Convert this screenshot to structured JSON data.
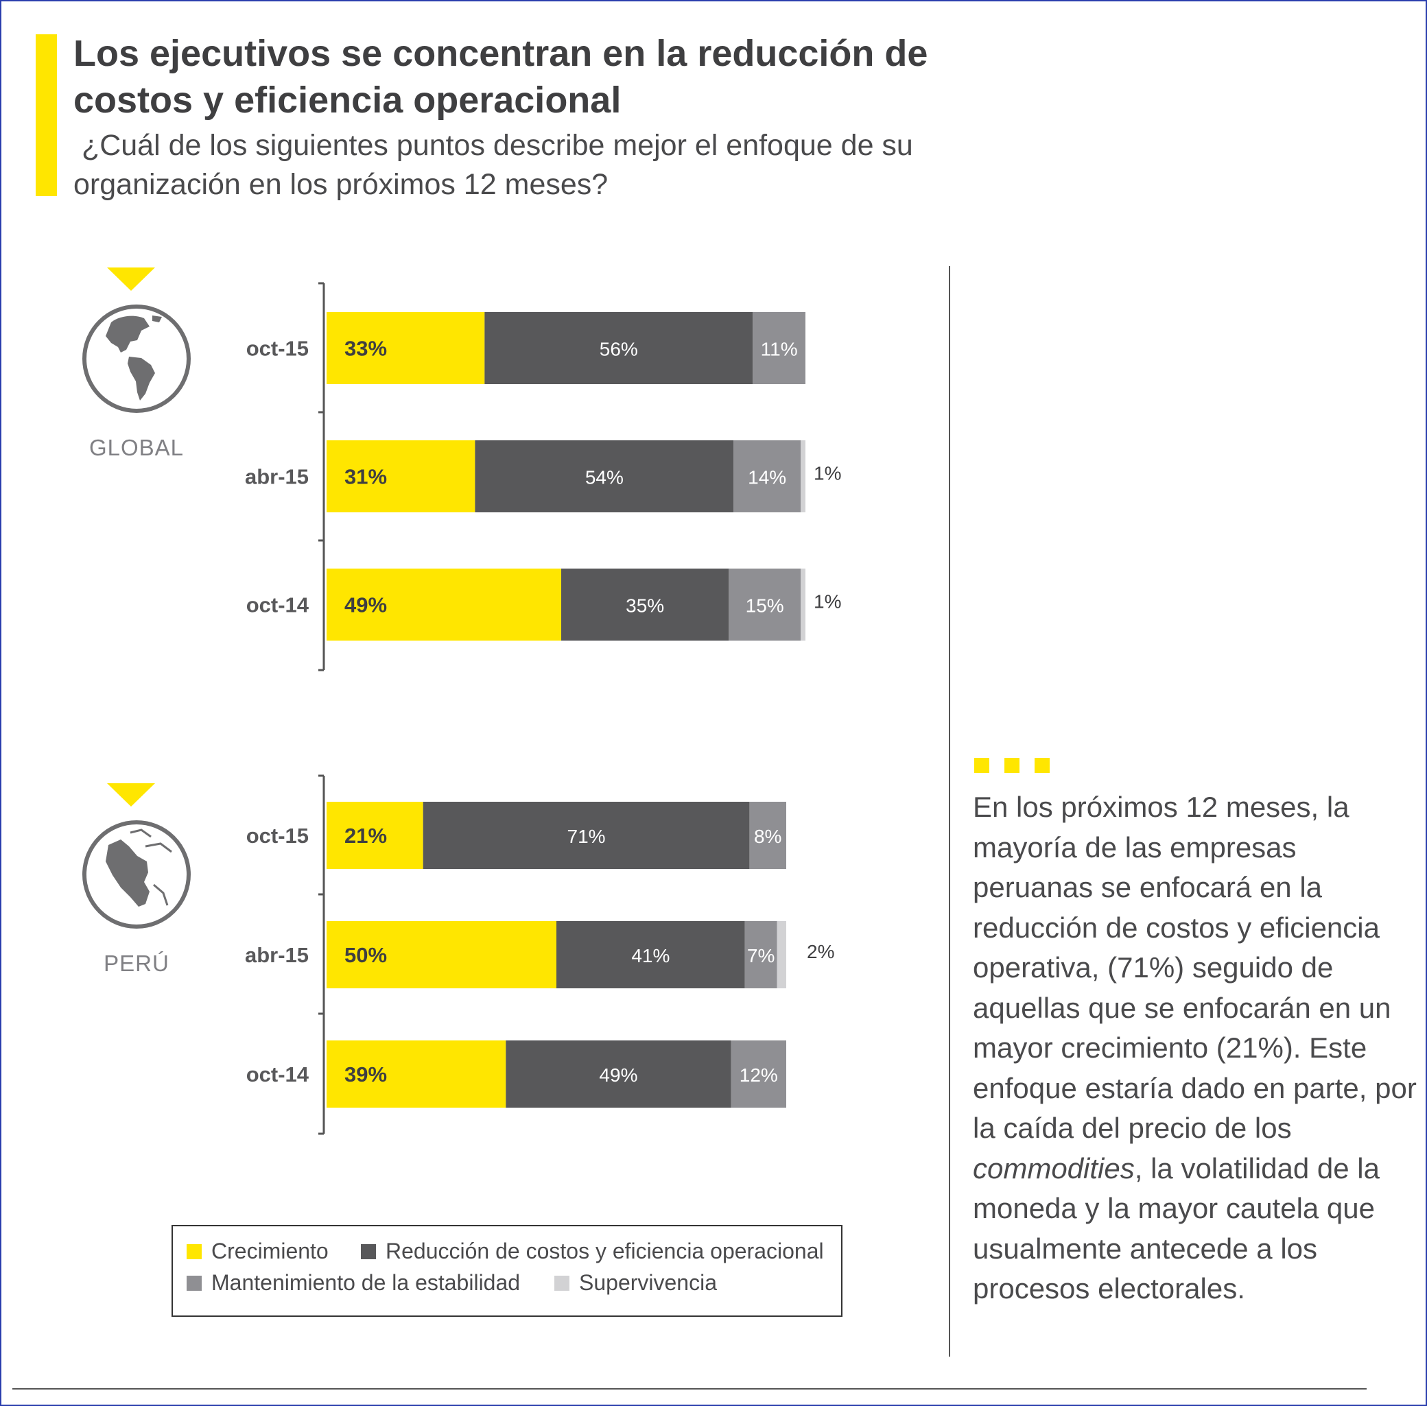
{
  "title": "Los ejecutivos se concentran en la reducción de costos y eficiencia operacional",
  "subtitle": " ¿Cuál de los siguientes puntos describe mejor el enfoque de su organización en los próximos 12 meses?",
  "colors": {
    "crecimiento": "#ffe600",
    "reduccion": "#58585a",
    "mantenimiento": "#8f8f93",
    "supervivencia": "#d2d2d4",
    "accent": "#ffe600"
  },
  "commentary": {
    "before": "En los próximos 12 meses, la mayoría de las empresas peruanas se enfocará en la reducción de costos y eficiencia operativa, (71%) seguido de aquellas que se enfocarán en un mayor crecimiento (21%). Este enfoque estaría dado en parte, por la caída del precio de los ",
    "italic": "commodities",
    "after": ", la volatilidad de la moneda y la mayor cautela que usualmente antecede a los procesos electorales."
  },
  "chart_data": [
    {
      "type": "bar",
      "orientation": "horizontal-stacked-100",
      "region": "GLOBAL",
      "icon": "globe-americas-icon",
      "categories": [
        "oct-15",
        "abr-15",
        "oct-14"
      ],
      "series": [
        {
          "name": "Crecimiento",
          "color": "#ffe600",
          "values": [
            33,
            31,
            49
          ],
          "labels": [
            "33%",
            "31%",
            "49%"
          ]
        },
        {
          "name": "Reducción de costos y eficiencia operacional",
          "color": "#58585a",
          "values": [
            56,
            54,
            35
          ],
          "labels": [
            "56%",
            "54%",
            "35%"
          ]
        },
        {
          "name": "Mantenimiento de la estabilidad",
          "color": "#8f8f93",
          "values": [
            11,
            14,
            15
          ],
          "labels": [
            "11%",
            "14%",
            "15%"
          ]
        },
        {
          "name": "Supervivencia",
          "color": "#d2d2d4",
          "values": [
            0,
            1,
            1
          ],
          "labels": [
            "",
            "1%",
            "1%"
          ]
        }
      ]
    },
    {
      "type": "bar",
      "orientation": "horizontal-stacked-100",
      "region": "PERÚ",
      "icon": "globe-peru-icon",
      "categories": [
        "oct-15",
        "abr-15",
        "oct-14"
      ],
      "series": [
        {
          "name": "Crecimiento",
          "color": "#ffe600",
          "values": [
            21,
            50,
            39
          ],
          "labels": [
            "21%",
            "50%",
            "39%"
          ]
        },
        {
          "name": "Reducción de costos y eficiencia operacional",
          "color": "#58585a",
          "values": [
            71,
            41,
            49
          ],
          "labels": [
            "71%",
            "41%",
            "49%"
          ]
        },
        {
          "name": "Mantenimiento de la estabilidad",
          "color": "#8f8f93",
          "values": [
            8,
            7,
            12
          ],
          "labels": [
            "8%",
            "7%",
            "12%"
          ]
        },
        {
          "name": "Supervivencia",
          "color": "#d2d2d4",
          "values": [
            0,
            2,
            0
          ],
          "labels": [
            "",
            "2%",
            ""
          ]
        }
      ]
    }
  ],
  "legend": [
    {
      "label": "Crecimiento",
      "color": "#ffe600"
    },
    {
      "label": "Reducción de costos y eficiencia operacional",
      "color": "#58585a"
    },
    {
      "label": "Mantenimiento de la estabilidad",
      "color": "#8f8f93"
    },
    {
      "label": "Supervivencia",
      "color": "#d2d2d4"
    }
  ]
}
